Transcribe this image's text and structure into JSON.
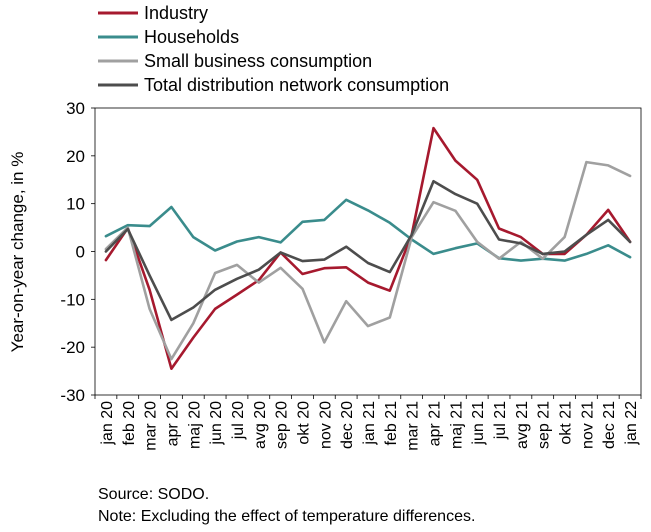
{
  "chart_data": {
    "type": "line",
    "xlabel": "",
    "ylabel": "Year-on-year change, in %",
    "ylim": [
      -30,
      30
    ],
    "yticks": [
      -30,
      -20,
      -10,
      0,
      10,
      20,
      30
    ],
    "grid": false,
    "legend_position": "top-left",
    "categories": [
      "jan 20",
      "feb 20",
      "mar 20",
      "apr 20",
      "maj 20",
      "jun 20",
      "jul 20",
      "avg 20",
      "sep 20",
      "okt 20",
      "nov 20",
      "dec 20",
      "jan 21",
      "feb 21",
      "mar 21",
      "apr 21",
      "maj 21",
      "jun 21",
      "jul 21",
      "avg 21",
      "sep 21",
      "okt 21",
      "nov 21",
      "dec 21",
      "jan 22"
    ],
    "series": [
      {
        "name": "Industry",
        "color": "#a6192e",
        "values": [
          -1.8,
          4.9,
          -8.0,
          -24.5,
          -18.0,
          -12.0,
          -9.0,
          -6.0,
          -0.2,
          -4.7,
          -3.5,
          -3.3,
          -6.5,
          -8.2,
          3.5,
          25.8,
          19.0,
          15.0,
          4.8,
          3.0,
          -0.5,
          -0.5,
          3.5,
          8.7,
          2.0
        ]
      },
      {
        "name": "Households",
        "color": "#3a8c8c",
        "values": [
          3.2,
          5.5,
          5.3,
          9.3,
          3.0,
          0.2,
          2.1,
          3.0,
          1.9,
          6.2,
          6.6,
          10.8,
          8.6,
          6.0,
          2.5,
          -0.5,
          0.7,
          1.7,
          -1.4,
          -1.9,
          -1.5,
          -1.9,
          -0.5,
          1.3,
          -1.2
        ]
      },
      {
        "name": "Small business consumption",
        "color": "#a0a0a0",
        "values": [
          0.5,
          5.0,
          -12.0,
          -22.5,
          -15.0,
          -4.5,
          -2.8,
          -6.5,
          -3.4,
          -7.8,
          -19.0,
          -10.4,
          -15.6,
          -13.8,
          3.0,
          10.3,
          8.5,
          2.0,
          -1.5,
          2.0,
          -1.5,
          3.0,
          18.7,
          18.0,
          15.8
        ]
      },
      {
        "name": "Total distribution network consumption",
        "color": "#4d4d4d",
        "values": [
          0.0,
          4.7,
          -5.0,
          -14.3,
          -11.7,
          -8.0,
          -5.7,
          -3.8,
          -0.2,
          -2.0,
          -1.7,
          1.0,
          -2.4,
          -4.3,
          3.5,
          14.7,
          12.0,
          10.0,
          2.5,
          1.7,
          -0.5,
          0.0,
          3.5,
          6.6,
          2.0
        ]
      }
    ]
  },
  "source_note": "Source: SODO.",
  "footnote": "Note: Excluding the effect of temperature differences."
}
